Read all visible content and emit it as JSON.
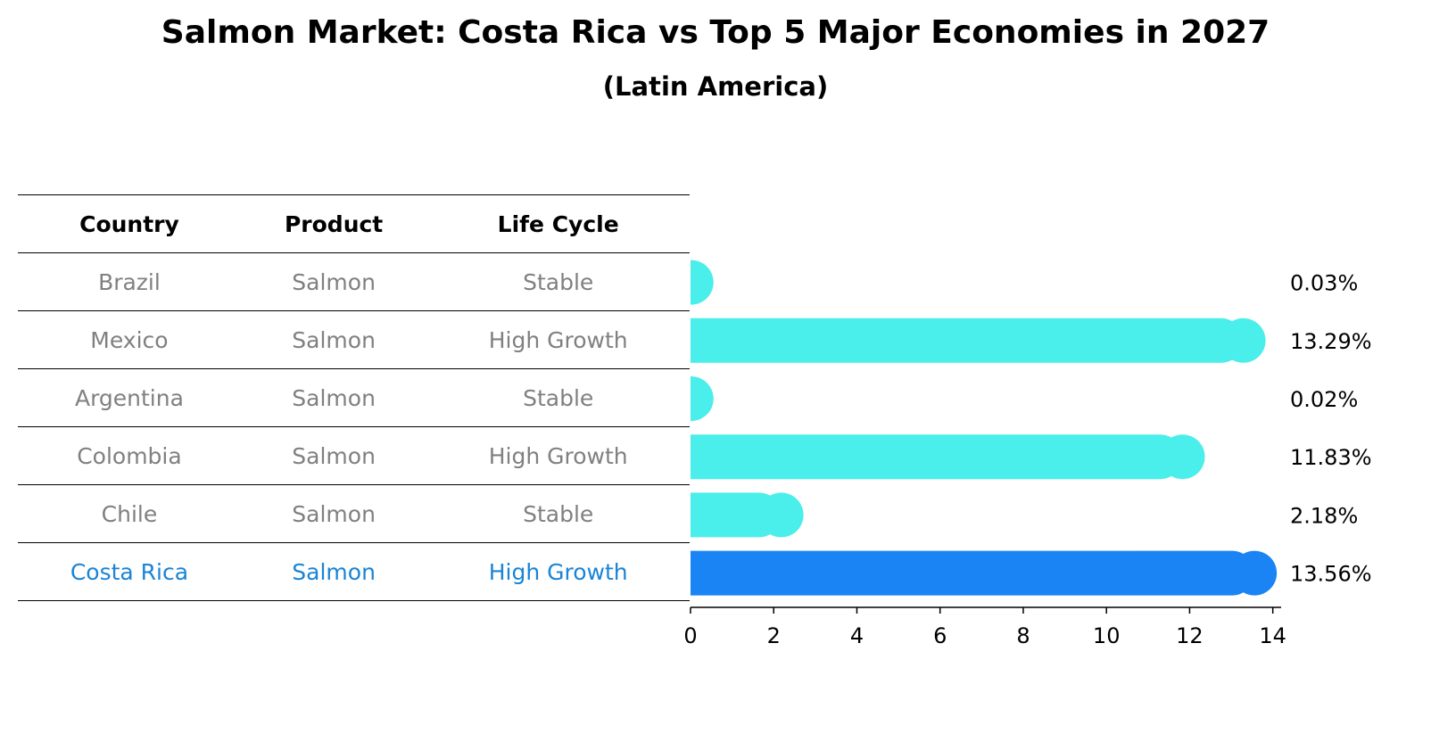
{
  "title": "Salmon Market: Costa Rica vs Top 5 Major Economies in 2027",
  "subtitle": "(Latin America)",
  "table": {
    "headers": [
      "Country",
      "Product",
      "Life Cycle"
    ],
    "rows": [
      [
        "Brazil",
        "Salmon",
        "Stable"
      ],
      [
        "Mexico",
        "Salmon",
        "High Growth"
      ],
      [
        "Argentina",
        "Salmon",
        "Stable"
      ],
      [
        "Colombia",
        "Salmon",
        "High Growth"
      ],
      [
        "Chile",
        "Salmon",
        "Stable"
      ],
      [
        "Costa Rica",
        "Salmon",
        "High Growth"
      ]
    ]
  },
  "colors": {
    "bar": "#4aeeea",
    "highlight": "#1a84f5",
    "highlight_text": "#1a84d6",
    "muted_text": "#808080"
  },
  "chart_data": {
    "type": "bar",
    "orientation": "horizontal",
    "categories": [
      "Brazil",
      "Mexico",
      "Argentina",
      "Colombia",
      "Chile",
      "Costa Rica"
    ],
    "values": [
      0.03,
      13.29,
      0.02,
      11.83,
      2.18,
      13.56
    ],
    "value_labels": [
      "0.03%",
      "13.29%",
      "0.02%",
      "11.83%",
      "2.18%",
      "13.56%"
    ],
    "highlight": "Costa Rica",
    "xlim": [
      0,
      14.2
    ],
    "xticks": [
      0,
      2,
      4,
      6,
      8,
      10,
      12,
      14
    ],
    "xlabel": "",
    "ylabel": "",
    "grid": false
  }
}
